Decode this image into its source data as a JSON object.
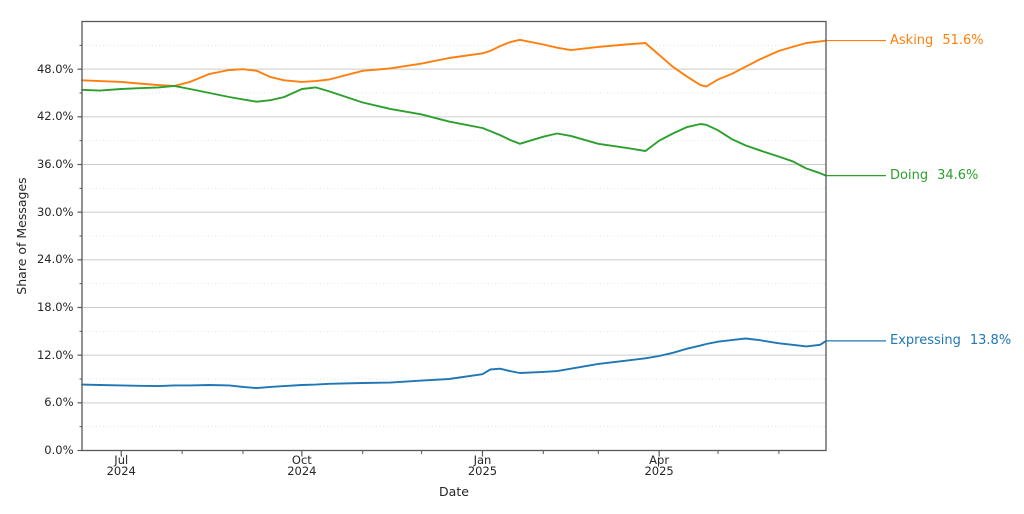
{
  "figure": {
    "ylabel": "Share of Messages",
    "xlabel": "Date",
    "background_color": "#ffffff",
    "spine_color": "#58585a",
    "major_grid_color": "#cccccc",
    "minor_grid_color": "#e2e2e2",
    "text_color": "#262626"
  },
  "axes": {
    "y": {
      "major_labels": [
        "0.0%",
        "6.0%",
        "12.0%",
        "18.0%",
        "24.0%",
        "30.0%",
        "36.0%",
        "42.0%",
        "48.0%"
      ],
      "major_values": [
        0,
        6,
        12,
        18,
        24,
        30,
        36,
        42,
        48
      ],
      "minor_values": [
        3,
        9,
        15,
        21,
        27,
        33,
        39,
        45,
        51
      ]
    },
    "x": {
      "start_date": "2024-06-11",
      "end_date": "2025-06-25",
      "major_ticks": [
        {
          "date": "2024-07-01",
          "line1": "Jul",
          "line2": "2024"
        },
        {
          "date": "2024-10-01",
          "line1": "Oct",
          "line2": "2024"
        },
        {
          "date": "2025-01-01",
          "line1": "Jan",
          "line2": "2025"
        },
        {
          "date": "2025-04-01",
          "line1": "Apr",
          "line2": "2025"
        }
      ],
      "minor_ticks": [
        "2024-08-01",
        "2024-09-01",
        "2024-11-01",
        "2024-12-01",
        "2025-02-01",
        "2025-03-01",
        "2025-05-01",
        "2025-06-01"
      ]
    }
  },
  "annotations": [
    {
      "label": "Asking",
      "value": "51.6%",
      "color": "#ff7f0e",
      "series": "Asking"
    },
    {
      "label": "Doing",
      "value": "34.6%",
      "color": "#2ca02c",
      "series": "Doing"
    },
    {
      "label": "Expressing",
      "value": "13.8%",
      "color": "#1f77b4",
      "series": "Expressing"
    }
  ],
  "chart_data": {
    "type": "line",
    "title": "",
    "xlabel": "Date",
    "ylabel": "Share of Messages",
    "ylim": [
      0,
      54
    ],
    "grid": "horizontal only; solid major every 6%, dotted minor every 3%",
    "legend": "end-of-line labels at right edge",
    "x_dates": [
      "2024-06-11",
      "2024-06-20",
      "2024-07-01",
      "2024-07-10",
      "2024-07-20",
      "2024-07-28",
      "2024-08-05",
      "2024-08-15",
      "2024-08-25",
      "2024-09-01",
      "2024-09-08",
      "2024-09-15",
      "2024-09-22",
      "2024-10-01",
      "2024-10-08",
      "2024-10-15",
      "2024-11-01",
      "2024-11-15",
      "2024-12-01",
      "2024-12-15",
      "2025-01-01",
      "2025-01-05",
      "2025-01-10",
      "2025-01-15",
      "2025-01-20",
      "2025-02-01",
      "2025-02-08",
      "2025-02-15",
      "2025-03-01",
      "2025-03-15",
      "2025-03-25",
      "2025-04-01",
      "2025-04-08",
      "2025-04-15",
      "2025-04-22",
      "2025-04-25",
      "2025-05-01",
      "2025-05-08",
      "2025-05-15",
      "2025-05-22",
      "2025-06-01",
      "2025-06-08",
      "2025-06-15",
      "2025-06-22",
      "2025-06-25"
    ],
    "series": [
      {
        "name": "Asking",
        "color": "#ff7f0e",
        "final_label": "Asking  51.6%",
        "values": [
          46.6,
          46.5,
          46.4,
          46.2,
          46.0,
          45.9,
          46.4,
          47.4,
          47.9,
          48.0,
          47.8,
          47.0,
          46.6,
          46.4,
          46.5,
          46.7,
          47.8,
          48.1,
          48.7,
          49.4,
          50.0,
          50.3,
          50.9,
          51.4,
          51.7,
          51.1,
          50.7,
          50.4,
          50.8,
          51.1,
          51.3,
          49.8,
          48.3,
          47.1,
          46.0,
          45.8,
          46.7,
          47.4,
          48.3,
          49.2,
          50.3,
          50.8,
          51.3,
          51.5,
          51.6
        ]
      },
      {
        "name": "Doing",
        "color": "#2ca02c",
        "final_label": "Doing  34.6%",
        "values": [
          45.4,
          45.3,
          45.5,
          45.6,
          45.7,
          45.9,
          45.5,
          45.0,
          44.5,
          44.2,
          43.9,
          44.1,
          44.5,
          45.5,
          45.7,
          45.2,
          43.8,
          43.0,
          42.3,
          41.4,
          40.6,
          40.2,
          39.7,
          39.1,
          38.6,
          39.5,
          39.9,
          39.6,
          38.6,
          38.1,
          37.7,
          39.0,
          39.9,
          40.7,
          41.1,
          41.0,
          40.3,
          39.2,
          38.4,
          37.8,
          37.0,
          36.4,
          35.5,
          34.9,
          34.6
        ]
      },
      {
        "name": "Expressing",
        "color": "#1f77b4",
        "final_label": "Expressing  13.8%",
        "values": [
          8.3,
          8.25,
          8.2,
          8.15,
          8.1,
          8.2,
          8.2,
          8.25,
          8.2,
          8.0,
          7.85,
          8.0,
          8.1,
          8.25,
          8.3,
          8.4,
          8.5,
          8.55,
          8.8,
          9.0,
          9.6,
          10.2,
          10.3,
          10.0,
          9.75,
          9.9,
          10.0,
          10.3,
          10.9,
          11.3,
          11.6,
          11.9,
          12.3,
          12.8,
          13.2,
          13.4,
          13.7,
          13.9,
          14.1,
          13.9,
          13.5,
          13.3,
          13.1,
          13.3,
          13.8
        ]
      }
    ]
  }
}
